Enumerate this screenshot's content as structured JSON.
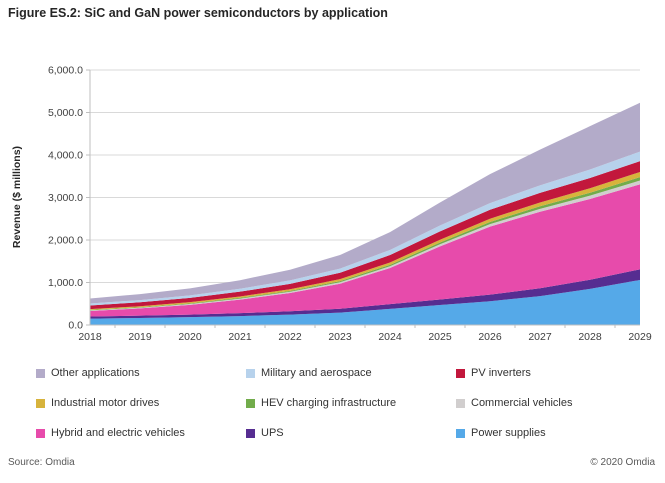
{
  "figure": {
    "title": "Figure ES.2: SiC and GaN power semiconductors by application",
    "source_left": "Source: Omdia",
    "source_right": "© 2020 Omdia"
  },
  "chart_data": {
    "type": "area",
    "stacked": true,
    "title": "",
    "xlabel": "",
    "ylabel": "Revenue ($ millions)",
    "x": [
      2018,
      2019,
      2020,
      2021,
      2022,
      2023,
      2024,
      2025,
      2026,
      2027,
      2028,
      2029
    ],
    "ylim": [
      0,
      6000
    ],
    "ytick_values": [
      0,
      1000,
      2000,
      3000,
      4000,
      5000,
      6000
    ],
    "ytick_labels": [
      "0.0",
      "1,000.0",
      "2,000.0",
      "3,000.0",
      "4,000.0",
      "5,000.0",
      "6,000.0"
    ],
    "grid": true,
    "legend_position": "bottom",
    "series_note": "series listed bottom-to-top of the stack; values in $ millions (estimated from plot)",
    "series": [
      {
        "key": "power-supplies",
        "name": "Power supplies",
        "color": "#55a9e8",
        "values": [
          150,
          165,
          185,
          210,
          245,
          290,
          380,
          470,
          560,
          680,
          850,
          1060
        ]
      },
      {
        "key": "ups",
        "name": "UPS",
        "color": "#562d91",
        "values": [
          50,
          55,
          60,
          68,
          78,
          92,
          110,
          130,
          155,
          185,
          215,
          250
        ]
      },
      {
        "key": "hybrid-electric-vehicles",
        "name": "Hybrid and electric vehicles",
        "color": "#e74bab",
        "values": [
          130,
          170,
          230,
          320,
          430,
          590,
          850,
          1250,
          1600,
          1800,
          1900,
          2000
        ]
      },
      {
        "key": "commercial-vehicles",
        "name": "Commercial vehicles",
        "color": "#d1cece",
        "values": [
          15,
          17,
          20,
          24,
          28,
          34,
          42,
          50,
          58,
          68,
          78,
          90
        ]
      },
      {
        "key": "hev-charging-infrastructure",
        "name": "HEV charging infrastructure",
        "color": "#72ac4b",
        "values": [
          10,
          12,
          15,
          18,
          22,
          27,
          34,
          42,
          50,
          60,
          70,
          80
        ]
      },
      {
        "key": "industrial-motor-drives",
        "name": "Industrial motor drives",
        "color": "#d7b33c",
        "values": [
          20,
          23,
          27,
          32,
          38,
          45,
          55,
          65,
          78,
          90,
          105,
          120
        ]
      },
      {
        "key": "pv-inverters",
        "name": "PV inverters",
        "color": "#c2173c",
        "values": [
          85,
          92,
          100,
          112,
          128,
          150,
          175,
          195,
          210,
          225,
          240,
          255
        ]
      },
      {
        "key": "military-aerospace",
        "name": "Military and aerospace",
        "color": "#b7d2ec",
        "values": [
          45,
          52,
          60,
          70,
          82,
          98,
          120,
          140,
          158,
          178,
          200,
          225
        ]
      },
      {
        "key": "other-applications",
        "name": "Other applications",
        "color": "#b3abc9",
        "values": [
          120,
          140,
          165,
          200,
          250,
          320,
          420,
          540,
          680,
          840,
          1020,
          1150
        ]
      }
    ],
    "legend_order": [
      "other-applications",
      "military-aerospace",
      "pv-inverters",
      "industrial-motor-drives",
      "hev-charging-infrastructure",
      "commercial-vehicles",
      "hybrid-electric-vehicles",
      "ups",
      "power-supplies"
    ]
  },
  "style": {
    "gridline_color": "#d9d9d9",
    "axis_color": "#bfbfbf",
    "tick_label_color": "#404040"
  }
}
